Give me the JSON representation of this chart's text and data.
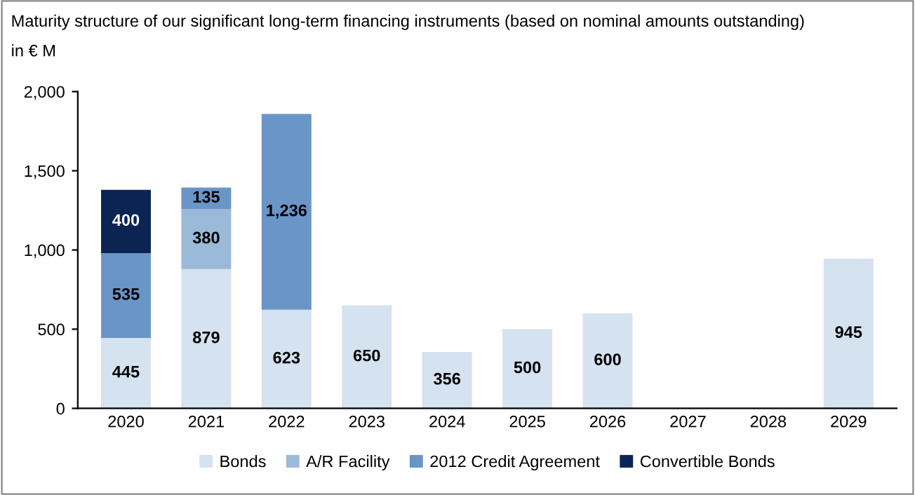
{
  "chart_data": {
    "type": "bar",
    "title": "Maturity structure of our significant long-term financing instruments (based on nominal amounts outstanding)",
    "subtitle": "in € M",
    "categories": [
      "2020",
      "2021",
      "2022",
      "2023",
      "2024",
      "2025",
      "2026",
      "2027",
      "2028",
      "2029"
    ],
    "series": [
      {
        "name": "Bonds",
        "color": "#d5e2ef",
        "values": [
          445,
          879,
          623,
          650,
          356,
          500,
          600,
          null,
          null,
          945
        ],
        "value_labels": [
          "445",
          "879",
          "623",
          "650",
          "356",
          "500",
          "600",
          null,
          null,
          "945"
        ]
      },
      {
        "name": "A/R Facility",
        "color": "#9bb9d9",
        "values": [
          null,
          380,
          null,
          null,
          null,
          null,
          null,
          null,
          null,
          null
        ],
        "value_labels": [
          null,
          "380",
          null,
          null,
          null,
          null,
          null,
          null,
          null,
          null
        ]
      },
      {
        "name": "2012 Credit Agreement",
        "color": "#6a95c7",
        "values": [
          535,
          135,
          1236,
          null,
          null,
          null,
          null,
          null,
          null,
          null
        ],
        "value_labels": [
          "535",
          "135",
          "1,236",
          null,
          null,
          null,
          null,
          null,
          null,
          null
        ]
      },
      {
        "name": "Convertible Bonds",
        "color": "#0b2452",
        "values": [
          400,
          null,
          null,
          null,
          null,
          null,
          null,
          null,
          null,
          null
        ],
        "value_labels": [
          "400",
          null,
          null,
          null,
          null,
          null,
          null,
          null,
          null,
          null
        ]
      }
    ],
    "stacked": true,
    "ylim": [
      0,
      2000
    ],
    "yticks": [
      {
        "value": 0,
        "label": "0"
      },
      {
        "value": 500,
        "label": "500"
      },
      {
        "value": 1000,
        "label": "1,000"
      },
      {
        "value": 1500,
        "label": "1,500"
      },
      {
        "value": 2000,
        "label": "2,000"
      }
    ],
    "grid": false,
    "legend": "bottom"
  }
}
